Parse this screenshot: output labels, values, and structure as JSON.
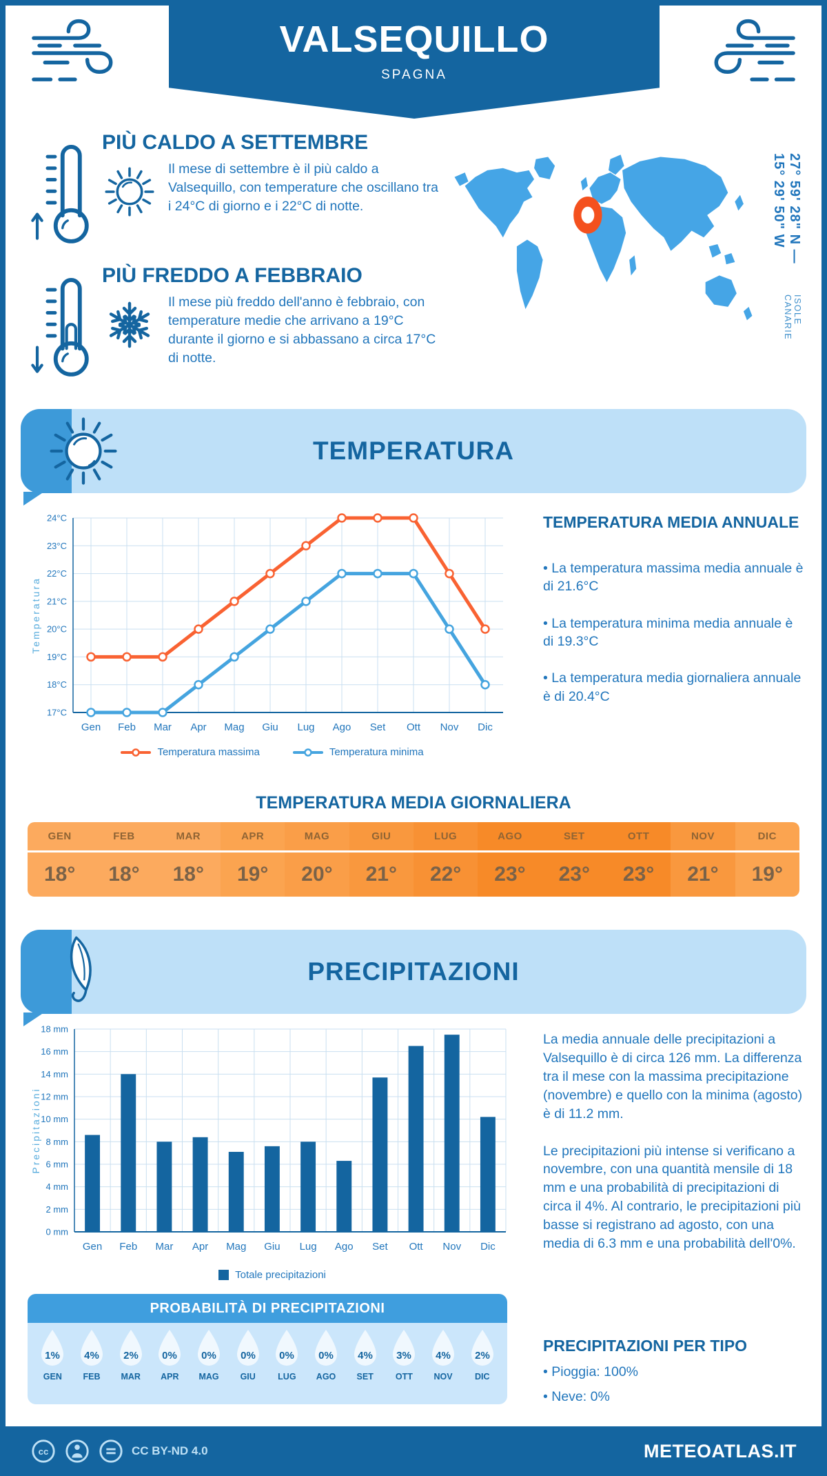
{
  "colors": {
    "primary": "#1465A0",
    "accent_medium": "#3D9AD9",
    "banner_light": "#BEE0F8",
    "text_blue": "#2176BC",
    "map_blue": "#45A5E6",
    "marker_orange": "#F4511E",
    "line_max_orange": "#F96232",
    "line_min_blue": "#45A4DF",
    "bar_blue": "#1465A0",
    "prob_header": "#3F9EDE",
    "prob_body": "#CBE6FB",
    "drop_fill": "#F0F8FE"
  },
  "header": {
    "title": "VALSEQUILLO",
    "subtitle": "SPAGNA"
  },
  "highlights": [
    {
      "title": "PIÙ CALDO A SETTEMBRE",
      "text": "Il mese di settembre è il più caldo a Valsequillo, con temperature che oscillano tra i 24°C di giorno e i 22°C di notte."
    },
    {
      "title": "PIÙ FREDDO A FEBBRAIO",
      "text": "Il mese più freddo dell'anno è febbraio, con temperature medie che arrivano a 19°C durante il giorno e si abbassano a circa 17°C di notte."
    }
  ],
  "map": {
    "coordinates": "27° 59' 28\" N — 15° 29' 50\" W",
    "region": "ISOLE CANARIE"
  },
  "sections": {
    "temperature": "TEMPERATURA",
    "precipitation": "PRECIPITAZIONI"
  },
  "chart_data": [
    {
      "type": "line",
      "title": "Temperatura mensile",
      "categories": [
        "Gen",
        "Feb",
        "Mar",
        "Apr",
        "Mag",
        "Giu",
        "Lug",
        "Ago",
        "Set",
        "Ott",
        "Nov",
        "Dic"
      ],
      "series": [
        {
          "name": "Temperatura massima",
          "color": "#F96232",
          "values": [
            19,
            19,
            19,
            20,
            21,
            22,
            23,
            24,
            24,
            24,
            22,
            20
          ]
        },
        {
          "name": "Temperatura minima",
          "color": "#45A4DF",
          "values": [
            17,
            17,
            17,
            18,
            19,
            20,
            21,
            22,
            22,
            22,
            20,
            18
          ]
        }
      ],
      "xlabel": "",
      "ylabel": "Temperatura",
      "ylim": [
        17,
        24
      ],
      "ytick_step": 1,
      "ytick_suffix": "°C",
      "grid": true,
      "legend_position": "bottom"
    },
    {
      "type": "bar",
      "title": "Precipitazioni mensili",
      "categories": [
        "Gen",
        "Feb",
        "Mar",
        "Apr",
        "Mag",
        "Giu",
        "Lug",
        "Ago",
        "Set",
        "Ott",
        "Nov",
        "Dic"
      ],
      "series": [
        {
          "name": "Totale precipitazioni",
          "color": "#1465A0",
          "values": [
            8.6,
            14,
            8,
            8.4,
            7.1,
            7.6,
            8,
            6.3,
            13.7,
            16.5,
            17.5,
            10.2
          ]
        }
      ],
      "xlabel": "",
      "ylabel": "Precipitazioni",
      "ylim": [
        0,
        18
      ],
      "ytick_step": 2,
      "ytick_suffix": " mm",
      "grid": true,
      "legend_position": "bottom"
    }
  ],
  "annual_summary": {
    "title": "TEMPERATURA MEDIA ANNUALE",
    "bullets": [
      "• La temperatura massima media annuale è di 21.6°C",
      "• La temperatura minima media annuale è di 19.3°C",
      "• La temperatura media giornaliera annuale è di 20.4°C"
    ]
  },
  "daily_table": {
    "title": "TEMPERATURA MEDIA GIORNALIERA",
    "months": [
      "GEN",
      "FEB",
      "MAR",
      "APR",
      "MAG",
      "GIU",
      "LUG",
      "AGO",
      "SET",
      "OTT",
      "NOV",
      "DIC"
    ],
    "values": [
      "18°",
      "18°",
      "18°",
      "19°",
      "20°",
      "21°",
      "22°",
      "23°",
      "23°",
      "23°",
      "21°",
      "19°"
    ],
    "cell_colors": [
      "#FCAA5E",
      "#FCAA5E",
      "#FCAA5E",
      "#FBA450",
      "#FA9E48",
      "#F9983E",
      "#F89134",
      "#F78A28",
      "#F78A28",
      "#F78A28",
      "#F9983E",
      "#FBA450"
    ]
  },
  "precipitation_text": {
    "p1": "La media annuale delle precipitazioni a Valsequillo è di circa 126 mm. La differenza tra il mese con la massima precipitazione (novembre) e quello con la minima (agosto) è di 11.2 mm.",
    "p2": "Le precipitazioni più intense si verificano a novembre, con una quantità mensile di 18 mm e una probabilità di precipitazioni di circa il 4%. Al contrario, le precipitazioni più basse si registrano ad agosto, con una media di 6.3 mm e una probabilità dell'0%."
  },
  "probability": {
    "title": "PROBABILITÀ DI PRECIPITAZIONI",
    "months": [
      "GEN",
      "FEB",
      "MAR",
      "APR",
      "MAG",
      "GIU",
      "LUG",
      "AGO",
      "SET",
      "OTT",
      "NOV",
      "DIC"
    ],
    "values": [
      "1%",
      "4%",
      "2%",
      "0%",
      "0%",
      "0%",
      "0%",
      "0%",
      "4%",
      "3%",
      "4%",
      "2%"
    ]
  },
  "precip_type": {
    "title": "PRECIPITAZIONI PER TIPO",
    "bullets": [
      "• Pioggia: 100%",
      "• Neve: 0%"
    ]
  },
  "footer": {
    "license": "CC BY-ND 4.0",
    "site": "METEOATLAS.IT"
  }
}
